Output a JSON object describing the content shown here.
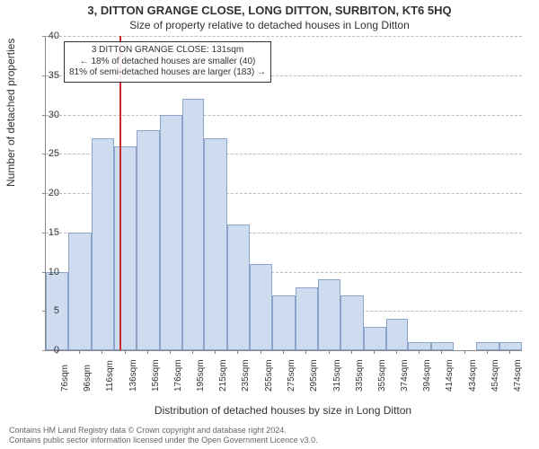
{
  "title": "3, DITTON GRANGE CLOSE, LONG DITTON, SURBITON, KT6 5HQ",
  "subtitle": "Size of property relative to detached houses in Long Ditton",
  "ylabel": "Number of detached properties",
  "xlabel": "Distribution of detached houses by size in Long Ditton",
  "footer1": "Contains HM Land Registry data © Crown copyright and database right 2024.",
  "footer2": "Contains public sector information licensed under the Open Government Licence v3.0.",
  "chart": {
    "ymax": 40,
    "ytick_step": 5,
    "yticks": [
      0,
      5,
      10,
      15,
      20,
      25,
      30,
      35,
      40
    ],
    "xticks": [
      "76sqm",
      "96sqm",
      "116sqm",
      "136sqm",
      "156sqm",
      "176sqm",
      "195sqm",
      "215sqm",
      "235sqm",
      "255sqm",
      "275sqm",
      "295sqm",
      "315sqm",
      "335sqm",
      "355sqm",
      "374sqm",
      "394sqm",
      "414sqm",
      "434sqm",
      "454sqm",
      "474sqm"
    ],
    "binmin": 66,
    "binmax": 484,
    "bin_edges": [
      66,
      86,
      106,
      126,
      146,
      166,
      186,
      205,
      225,
      245,
      265,
      285,
      305,
      325,
      345,
      365,
      384,
      404,
      424,
      444,
      464,
      484
    ],
    "values": [
      10,
      15,
      27,
      26,
      28,
      30,
      32,
      27,
      16,
      11,
      7,
      8,
      9,
      7,
      3,
      4,
      1,
      1,
      0,
      1,
      1
    ],
    "bar_fill": "#cfdcf0",
    "bar_stroke": "#8aa4ca",
    "background": "#ffffff",
    "grid_color": "#bbbbbb",
    "marker_value": 131,
    "marker_color": "#cc2a2a"
  },
  "callout": {
    "line1": "3 DITTON GRANGE CLOSE: 131sqm",
    "line2": "← 18% of detached houses are smaller (40)",
    "line3": "81% of semi-detached houses are larger (183) →"
  }
}
